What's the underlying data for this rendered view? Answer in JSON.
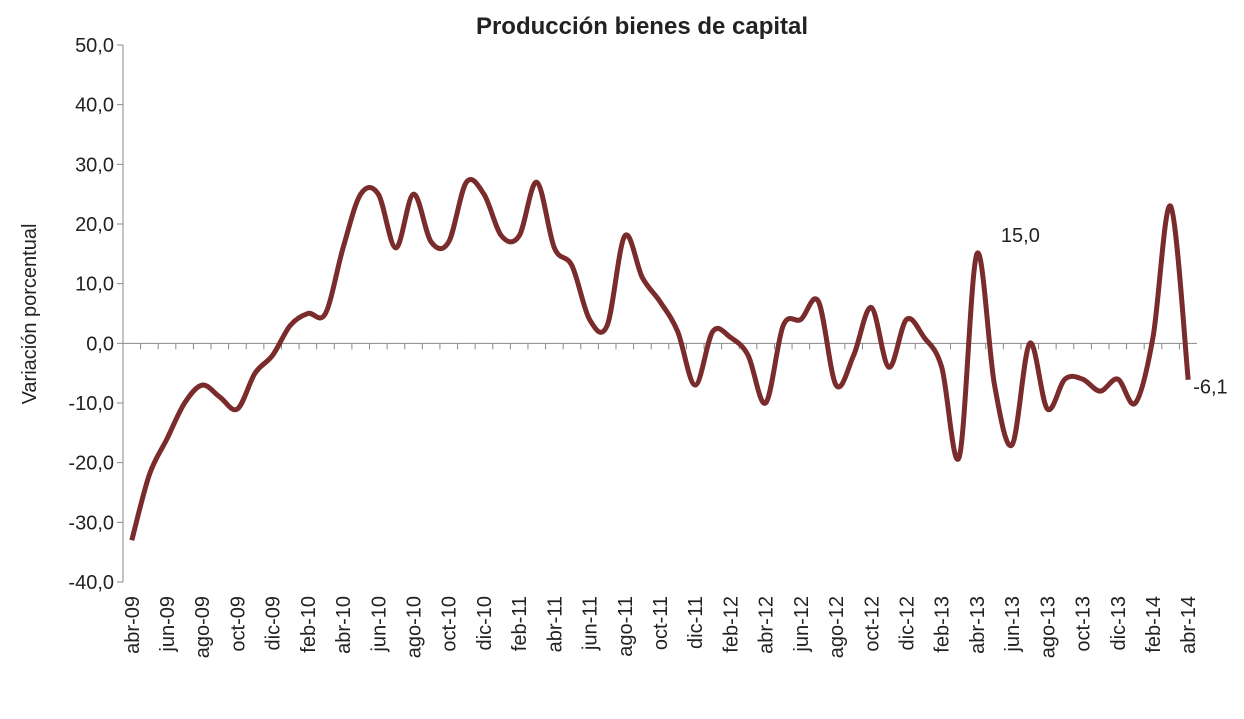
{
  "chart_data": {
    "type": "line",
    "title": "Producción bienes de capital",
    "y_label": "Variación porcentual",
    "categories": [
      "abr-09",
      null,
      "jun-09",
      null,
      "ago-09",
      null,
      "oct-09",
      null,
      "dic-09",
      null,
      "feb-10",
      null,
      "abr-10",
      null,
      "jun-10",
      null,
      "ago-10",
      null,
      "oct-10",
      null,
      "dic-10",
      null,
      "feb-11",
      null,
      "abr-11",
      null,
      "jun-11",
      null,
      "ago-11",
      null,
      "oct-11",
      null,
      "dic-11",
      null,
      "feb-12",
      null,
      "abr-12",
      null,
      "jun-12",
      null,
      "ago-12",
      null,
      "oct-12",
      null,
      "dic-12",
      null,
      "feb-13",
      null,
      "abr-13",
      null,
      "jun-13",
      null,
      "ago-13",
      null,
      "oct-13",
      null,
      "dic-13",
      null,
      "feb-14",
      null,
      "abr-14"
    ],
    "series": [
      {
        "name": "Producción bienes de capital",
        "color": "#7a2b2b",
        "values": [
          -33,
          -22,
          -16,
          -10,
          -7,
          -9,
          -11,
          -5,
          -2,
          3,
          5,
          5,
          16,
          25,
          25,
          16,
          25,
          17,
          17,
          27,
          25,
          18,
          18,
          27,
          16,
          13,
          4,
          3,
          18,
          11,
          7,
          2,
          -7,
          2,
          1,
          -2,
          -10,
          3,
          4,
          7,
          -7,
          -2,
          6,
          -4,
          4,
          1,
          -4,
          -19,
          15,
          -7,
          -17,
          0,
          -11,
          -6,
          -6,
          -8,
          -6,
          -10,
          1,
          23,
          -6.1
        ],
        "value_labels": [
          null,
          null,
          null,
          null,
          null,
          null,
          null,
          null,
          null,
          null,
          null,
          null,
          null,
          null,
          null,
          null,
          null,
          null,
          null,
          null,
          null,
          null,
          null,
          null,
          null,
          null,
          null,
          null,
          null,
          null,
          null,
          null,
          null,
          null,
          null,
          null,
          null,
          null,
          null,
          null,
          null,
          null,
          null,
          null,
          null,
          null,
          null,
          null,
          "15,0",
          null,
          null,
          null,
          null,
          null,
          null,
          null,
          null,
          null,
          null,
          null,
          "-6,1"
        ]
      }
    ],
    "ylim": [
      -40,
      50
    ],
    "yticks": [
      {
        "value": -40,
        "label": "-40,0"
      },
      {
        "value": -30,
        "label": "-30,0"
      },
      {
        "value": -20,
        "label": "-20,0"
      },
      {
        "value": -10,
        "label": "-10,0"
      },
      {
        "value": 0,
        "label": "0,0"
      },
      {
        "value": 10,
        "label": "10,0"
      },
      {
        "value": 20,
        "label": "20,0"
      },
      {
        "value": 30,
        "label": "30,0"
      },
      {
        "value": 40,
        "label": "40,0"
      },
      {
        "value": 50,
        "label": "50,0"
      }
    ]
  }
}
